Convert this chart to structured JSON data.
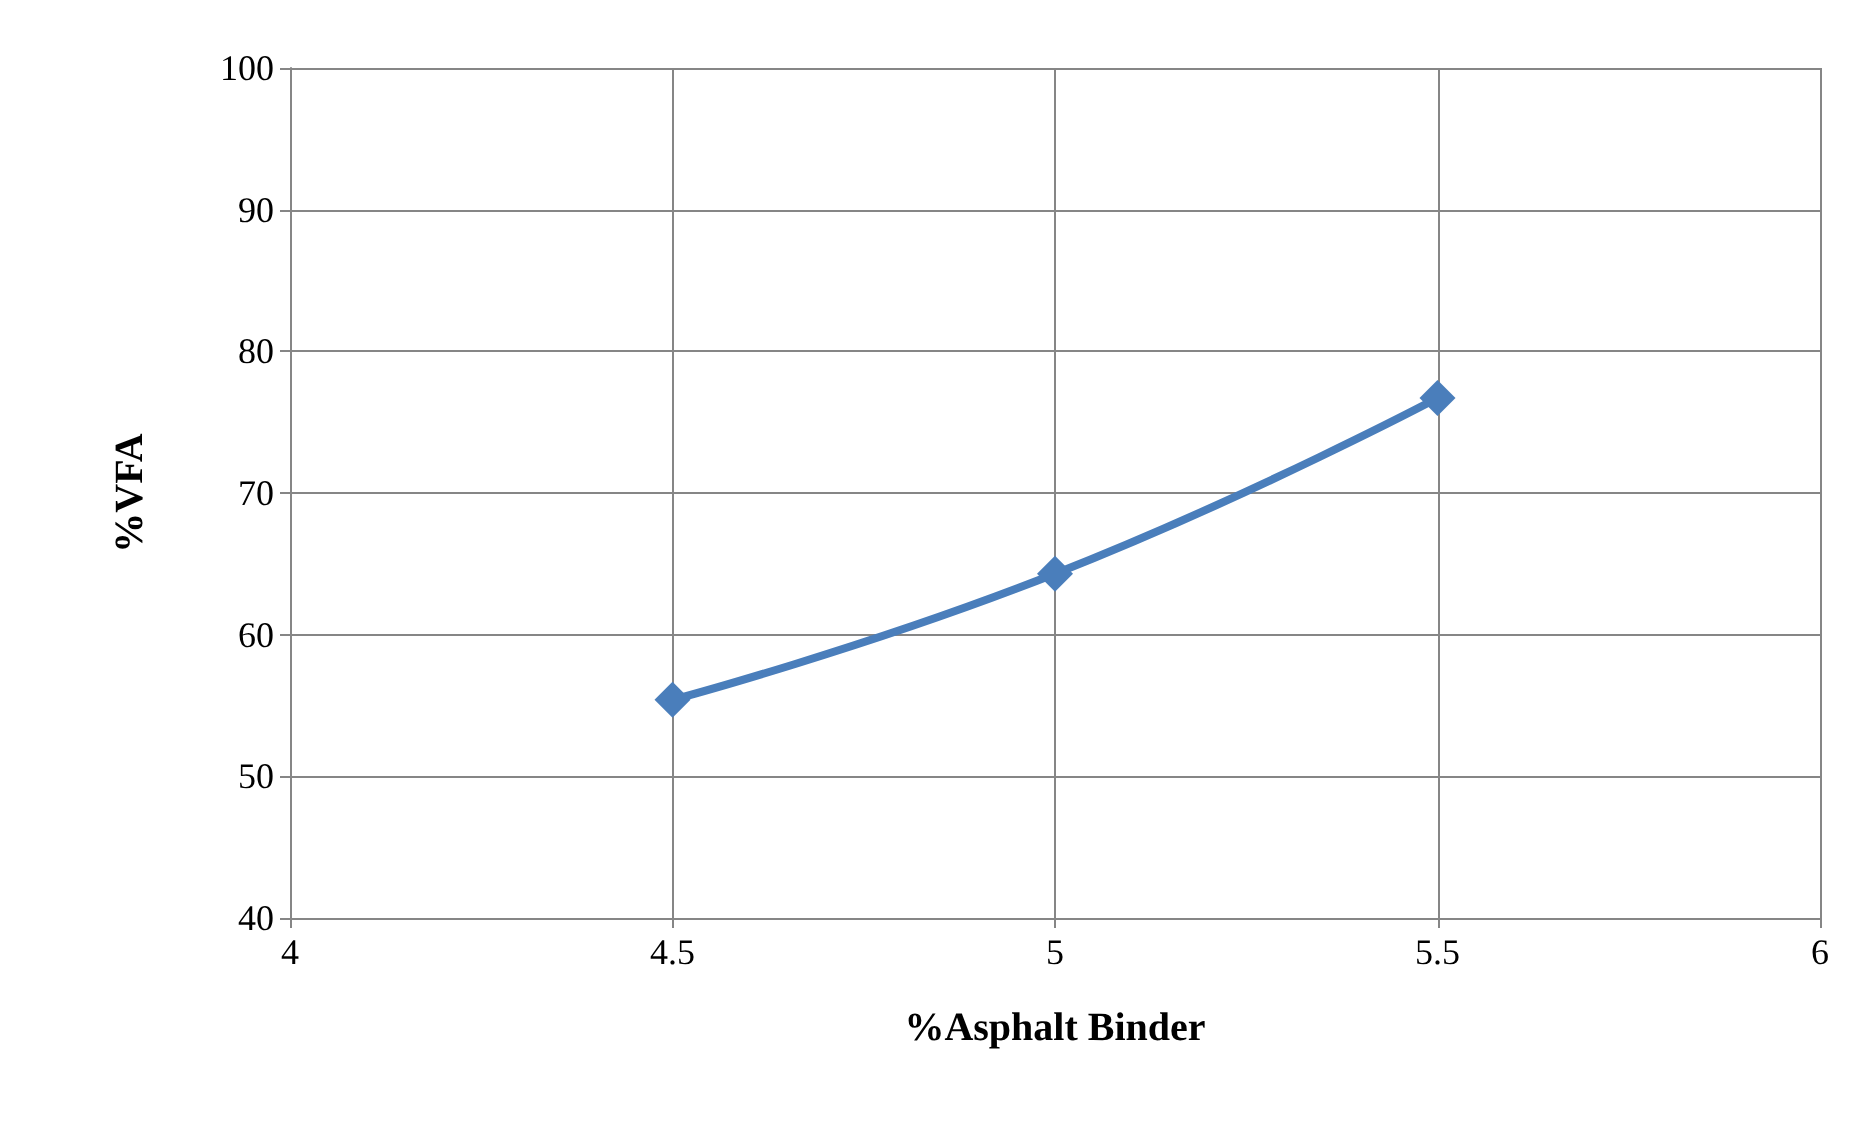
{
  "chart_data": {
    "type": "line",
    "xlabel": "%Asphalt Binder",
    "ylabel": "%VFA",
    "x": [
      4.5,
      5,
      5.5
    ],
    "series": [
      {
        "color": "#4a7ebb",
        "values": [
          55.4,
          64.3,
          76.7
        ]
      }
    ],
    "xlim": [
      4,
      6
    ],
    "xticks": [
      4,
      4.5,
      5,
      5.5,
      6
    ],
    "ylim": [
      40,
      100
    ],
    "yticks": [
      40,
      50,
      60,
      70,
      80,
      90,
      100
    ],
    "grid": true,
    "marker": "diamond",
    "line_style": "solid"
  }
}
